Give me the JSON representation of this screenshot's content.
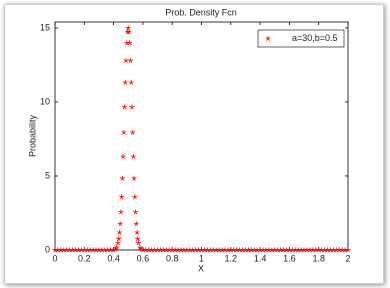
{
  "chart_data": {
    "type": "scatter",
    "title": "Prob. Density Fcn",
    "xlabel": "X",
    "ylabel": "Probability",
    "x": [
      0,
      0.02,
      0.04,
      0.06,
      0.08,
      0.1,
      0.12,
      0.14,
      0.16,
      0.18,
      0.2,
      0.22,
      0.24,
      0.26,
      0.28,
      0.3,
      0.32,
      0.34,
      0.36,
      0.38,
      0.4,
      0.41,
      0.42,
      0.43,
      0.435,
      0.44,
      0.445,
      0.45,
      0.455,
      0.46,
      0.465,
      0.47,
      0.475,
      0.48,
      0.485,
      0.49,
      0.495,
      0.5,
      0.505,
      0.51,
      0.515,
      0.52,
      0.525,
      0.53,
      0.535,
      0.54,
      0.545,
      0.55,
      0.555,
      0.56,
      0.565,
      0.57,
      0.58,
      0.59,
      0.6,
      0.62,
      0.64,
      0.66,
      0.68,
      0.7,
      0.72,
      0.74,
      0.76,
      0.78,
      0.8,
      0.82,
      0.84,
      0.86,
      0.88,
      0.9,
      0.92,
      0.94,
      0.96,
      0.98,
      1,
      1.02,
      1.04,
      1.06,
      1.08,
      1.1,
      1.12,
      1.14,
      1.16,
      1.18,
      1.2,
      1.22,
      1.24,
      1.26,
      1.28,
      1.3,
      1.32,
      1.34,
      1.36,
      1.38,
      1.4,
      1.42,
      1.44,
      1.46,
      1.48,
      1.5,
      1.52,
      1.54,
      1.56,
      1.58,
      1.6,
      1.62,
      1.64,
      1.66,
      1.68,
      1.7,
      1.72,
      1.74,
      1.76,
      1.78,
      1.8,
      1.82,
      1.84,
      1.86,
      1.88,
      1.9,
      1.92,
      1.94,
      1.96,
      1.98,
      2
    ],
    "series": [
      {
        "name": "a=30,b=0.5",
        "color": "#ff0000",
        "values": [
          0,
          0,
          0,
          0,
          0,
          0,
          0,
          0,
          0,
          0,
          0,
          0,
          0,
          0,
          0,
          0,
          0,
          0,
          0,
          0,
          0.01,
          0.05,
          0.16,
          0.47,
          0.76,
          1.18,
          1.77,
          2.56,
          3.59,
          4.84,
          6.31,
          7.94,
          9.65,
          11.31,
          12.8,
          13.98,
          14.74,
          15,
          14.74,
          13.98,
          12.8,
          11.31,
          9.65,
          7.94,
          6.31,
          4.84,
          3.59,
          2.56,
          1.77,
          1.18,
          0.76,
          0.47,
          0.16,
          0.05,
          0.01,
          0,
          0,
          0,
          0,
          0,
          0,
          0,
          0,
          0,
          0,
          0,
          0,
          0,
          0,
          0,
          0,
          0,
          0,
          0,
          0,
          0,
          0,
          0,
          0,
          0,
          0,
          0,
          0,
          0,
          0,
          0,
          0,
          0,
          0,
          0,
          0,
          0,
          0,
          0,
          0,
          0,
          0,
          0,
          0,
          0,
          0,
          0,
          0,
          0,
          0,
          0,
          0,
          0,
          0,
          0,
          0,
          0,
          0,
          0,
          0,
          0,
          0,
          0,
          0,
          0,
          0,
          0,
          0,
          0,
          0
        ]
      }
    ],
    "xlim": [
      0,
      2
    ],
    "xticks": [
      0,
      0.2,
      0.4,
      0.6,
      0.8,
      1,
      1.2,
      1.4,
      1.6,
      1.8,
      2
    ],
    "ylim": [
      0,
      15.4
    ],
    "yticks": [
      0,
      5,
      10,
      15
    ],
    "legend": "upper right"
  }
}
